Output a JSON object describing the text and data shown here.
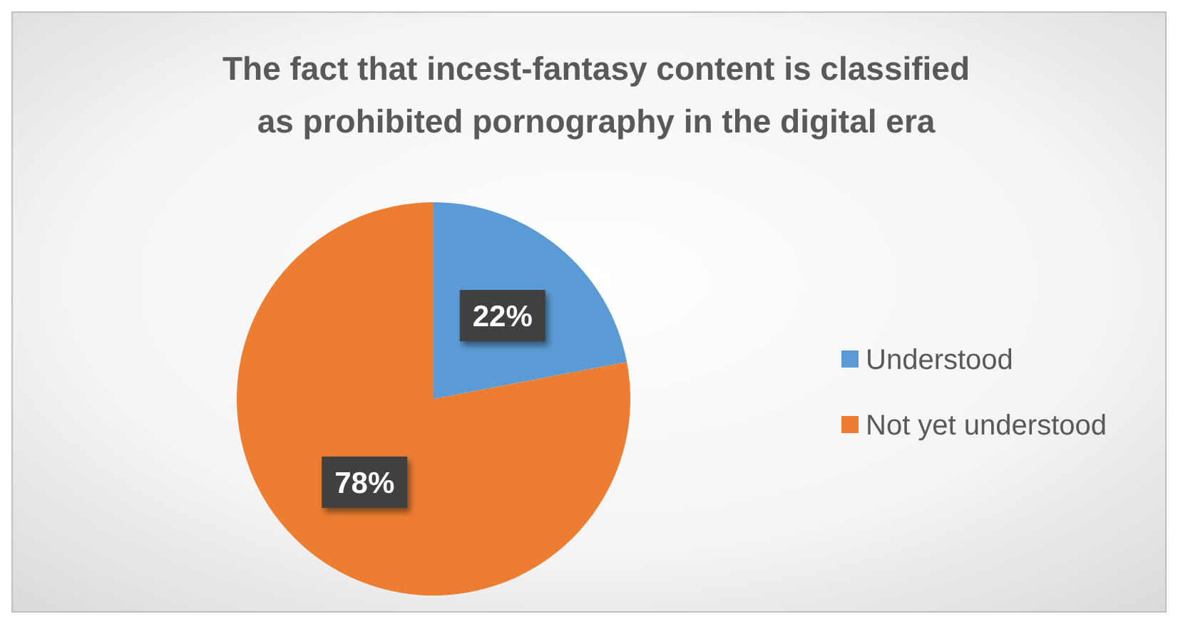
{
  "chart_data": {
    "type": "pie",
    "title": "The fact that incest-fantasy content is classified as prohibited pornography in the digital era",
    "categories": [
      "Understood",
      "Not yet understood"
    ],
    "values": [
      22,
      78
    ],
    "colors": [
      "#5b9bd5",
      "#ed7d31"
    ],
    "value_labels": [
      "22%",
      "78%"
    ],
    "legend": "right"
  }
}
